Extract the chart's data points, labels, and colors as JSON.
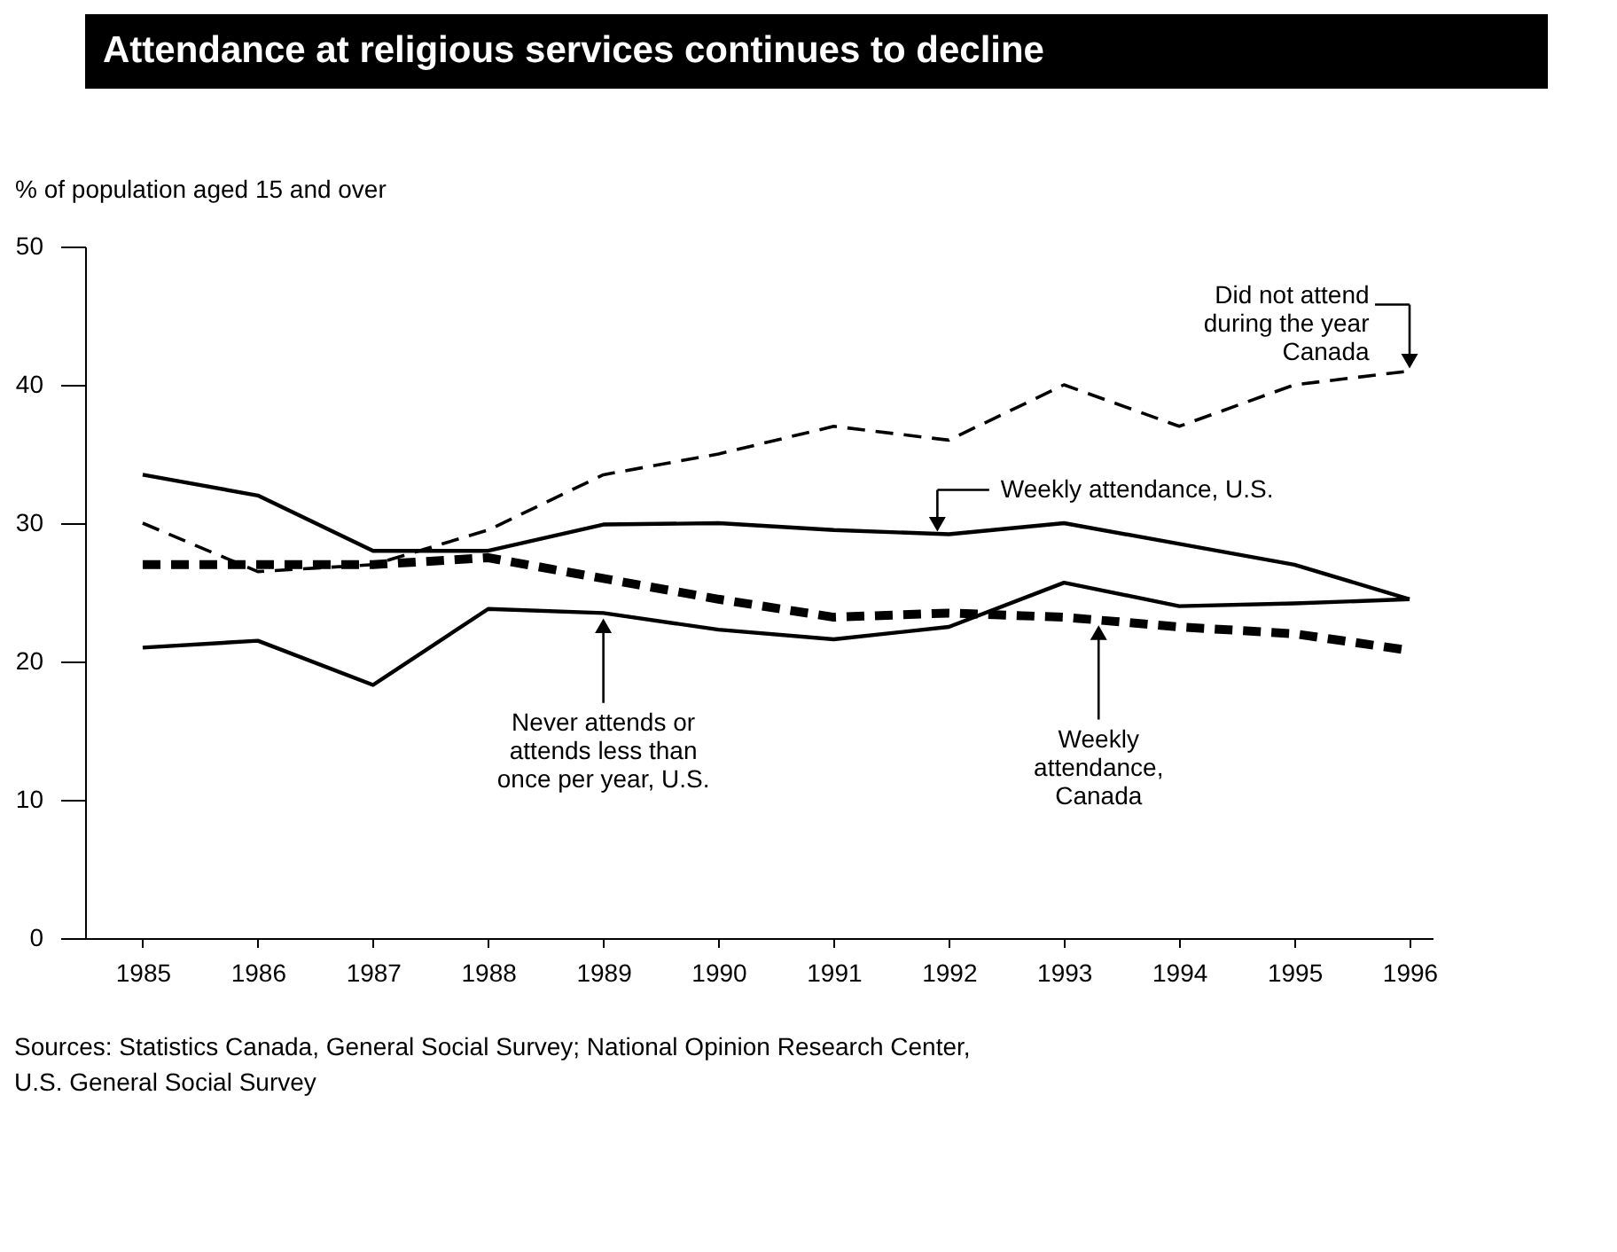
{
  "chart_data": {
    "type": "line",
    "title": "Attendance at religious services continues to decline",
    "ylabel": "% of population aged 15 and over",
    "x": [
      1985,
      1986,
      1987,
      1988,
      1989,
      1990,
      1991,
      1992,
      1993,
      1994,
      1995,
      1996
    ],
    "xlim": [
      1984.5,
      1996.2
    ],
    "xticks": [
      1985,
      1986,
      1987,
      1988,
      1989,
      1990,
      1991,
      1992,
      1993,
      1994,
      1995,
      1996
    ],
    "ylim": [
      0,
      50
    ],
    "yticks": [
      0,
      10,
      20,
      30,
      40,
      50
    ],
    "grid": false,
    "marker": "none",
    "series": [
      {
        "color": "#000000",
        "line_style": "dashed",
        "values": [
          30,
          26.5,
          27,
          29.5,
          33.5,
          35,
          37,
          36,
          40,
          37,
          40,
          41
        ]
      },
      {
        "color": "#000000",
        "line_style": "solid",
        "values": [
          33.5,
          32,
          28,
          28,
          29.9,
          30,
          29.5,
          29.2,
          30,
          28.5,
          27,
          24.5
        ]
      },
      {
        "color": "#000000",
        "line_style": "dashed",
        "values": [
          27,
          27,
          27,
          27.5,
          26,
          24.5,
          23.2,
          23.5,
          23.2,
          22.5,
          22,
          20.8
        ]
      },
      {
        "color": "#000000",
        "line_style": "solid",
        "values": [
          21,
          21.5,
          18.3,
          23.8,
          23.5,
          22.3,
          21.6,
          22.5,
          25.7,
          24,
          24.2,
          24.5
        ]
      }
    ],
    "annotations": [
      {
        "text": "Did not attend\nduring the year\nCanada",
        "x": 1996,
        "y": 41
      },
      {
        "text": "Weekly attendance, U.S.",
        "x": 1991.9,
        "y": 29.2
      },
      {
        "text": "Never attends or\nattends less than\nonce per year, U.S.",
        "x": 1989,
        "y": 23.3
      },
      {
        "text": "Weekly\nattendance,\nCanada",
        "x": 1993.3,
        "y": 22.8
      },
      "Sources: Statistics Canada, General Social Survey; National Opinion Research Center,\nU.S. General Social Survey"
    ]
  }
}
